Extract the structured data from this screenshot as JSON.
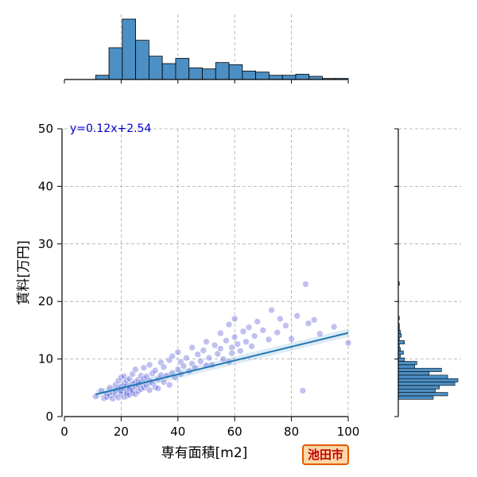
{
  "chart_data": {
    "type": "scatter",
    "title": "",
    "xlabel": "専有面積[m2]",
    "ylabel": "賃料[万円]",
    "xlim": [
      0,
      100
    ],
    "ylim": [
      0,
      50
    ],
    "xticks": [
      0,
      20,
      40,
      60,
      80,
      100
    ],
    "yticks": [
      0,
      10,
      20,
      30,
      40,
      50
    ],
    "grid": true,
    "annotation": "y=0.12x+2.54",
    "regression": {
      "slope": 0.12,
      "intercept": 2.54,
      "x_range": [
        11,
        100
      ]
    },
    "colors": {
      "points": "#4a4ad6",
      "line": "#1f77b4",
      "hist": "#4c8fc4"
    },
    "points_x": [
      11,
      13,
      14,
      15,
      15,
      16,
      16,
      17,
      17,
      18,
      18,
      18,
      19,
      19,
      19,
      20,
      20,
      20,
      20,
      21,
      21,
      21,
      21,
      22,
      22,
      22,
      22,
      22,
      23,
      23,
      23,
      23,
      24,
      24,
      24,
      24,
      25,
      25,
      25,
      25,
      26,
      26,
      26,
      27,
      27,
      27,
      28,
      28,
      28,
      29,
      29,
      30,
      30,
      30,
      31,
      31,
      32,
      32,
      33,
      33,
      34,
      34,
      35,
      35,
      36,
      37,
      37,
      38,
      38,
      39,
      40,
      40,
      41,
      41,
      42,
      43,
      44,
      45,
      45,
      46,
      47,
      48,
      49,
      50,
      50,
      51,
      52,
      53,
      54,
      55,
      55,
      56,
      57,
      58,
      58,
      59,
      59,
      60,
      60,
      61,
      62,
      63,
      64,
      65,
      66,
      67,
      68,
      70,
      72,
      73,
      75,
      76,
      78,
      80,
      82,
      84,
      85,
      86,
      88,
      90,
      95,
      100
    ],
    "points_y": [
      3.5,
      4.5,
      3.2,
      3.4,
      4.0,
      3.6,
      5.0,
      4.2,
      3.1,
      3.8,
      5.5,
      4.6,
      3.3,
      4.8,
      6.2,
      3.9,
      5.2,
      4.4,
      6.8,
      3.4,
      4.9,
      5.8,
      7.0,
      3.6,
      4.3,
      5.4,
      6.3,
      4.0,
      3.8,
      5.1,
      6.6,
      4.7,
      4.1,
      5.7,
      7.4,
      4.5,
      3.9,
      6.0,
      5.2,
      8.2,
      4.4,
      6.4,
      5.6,
      4.8,
      7.1,
      5.9,
      5.0,
      6.6,
      8.5,
      5.4,
      7.0,
      4.6,
      6.2,
      9.0,
      5.8,
      7.5,
      5.1,
      8.0,
      6.5,
      4.9,
      7.2,
      9.4,
      6.0,
      8.6,
      7.1,
      5.5,
      9.8,
      7.6,
      10.5,
      6.8,
      8.2,
      11.2,
      7.4,
      9.5,
      8.8,
      10.2,
      7.9,
      9.2,
      12.0,
      8.5,
      10.8,
      9.6,
      11.5,
      8.9,
      13.0,
      10.2,
      9.0,
      12.4,
      10.9,
      11.8,
      14.5,
      10.0,
      13.2,
      9.5,
      16.0,
      12.0,
      11.0,
      13.8,
      17.0,
      12.6,
      11.4,
      14.8,
      13.0,
      15.5,
      12.2,
      14.0,
      16.5,
      15.0,
      13.4,
      18.5,
      14.6,
      17.0,
      15.8,
      13.5,
      17.5,
      4.5,
      23.0,
      16.2,
      16.8,
      14.4,
      15.6,
      12.8
    ],
    "marginal_x": {
      "bin_edges": [
        11,
        15.7,
        20.4,
        25.1,
        29.8,
        34.5,
        39.2,
        43.9,
        48.6,
        53.3,
        58,
        62.7,
        67.4,
        72.1,
        76.8,
        81.5,
        86.2,
        90.9,
        95.6,
        100
      ],
      "counts": [
        4,
        30,
        57,
        37,
        22,
        15,
        20,
        11,
        10,
        16,
        14,
        8,
        7,
        4,
        4,
        5,
        3,
        1,
        1
      ]
    },
    "marginal_y": {
      "bin_edges": [
        3,
        3.6,
        4.2,
        4.8,
        5.4,
        6,
        6.6,
        7.2,
        7.8,
        8.4,
        9,
        9.6,
        10.2,
        10.8,
        11.4,
        12,
        12.6,
        13.2,
        13.8,
        14.4,
        15,
        15.6,
        16.2,
        16.8,
        17.4,
        18,
        18.6,
        19.2,
        19.8,
        20.4,
        21,
        21.6,
        22.2,
        22.8,
        23.4
      ],
      "counts": [
        34,
        48,
        36,
        40,
        55,
        58,
        48,
        30,
        42,
        16,
        18,
        6,
        2,
        5,
        2,
        1,
        6,
        1,
        3,
        2,
        1,
        1,
        0,
        1,
        0,
        0,
        0,
        0,
        0,
        0,
        0,
        0,
        0,
        1
      ]
    }
  },
  "badge": {
    "text": "池田市"
  }
}
